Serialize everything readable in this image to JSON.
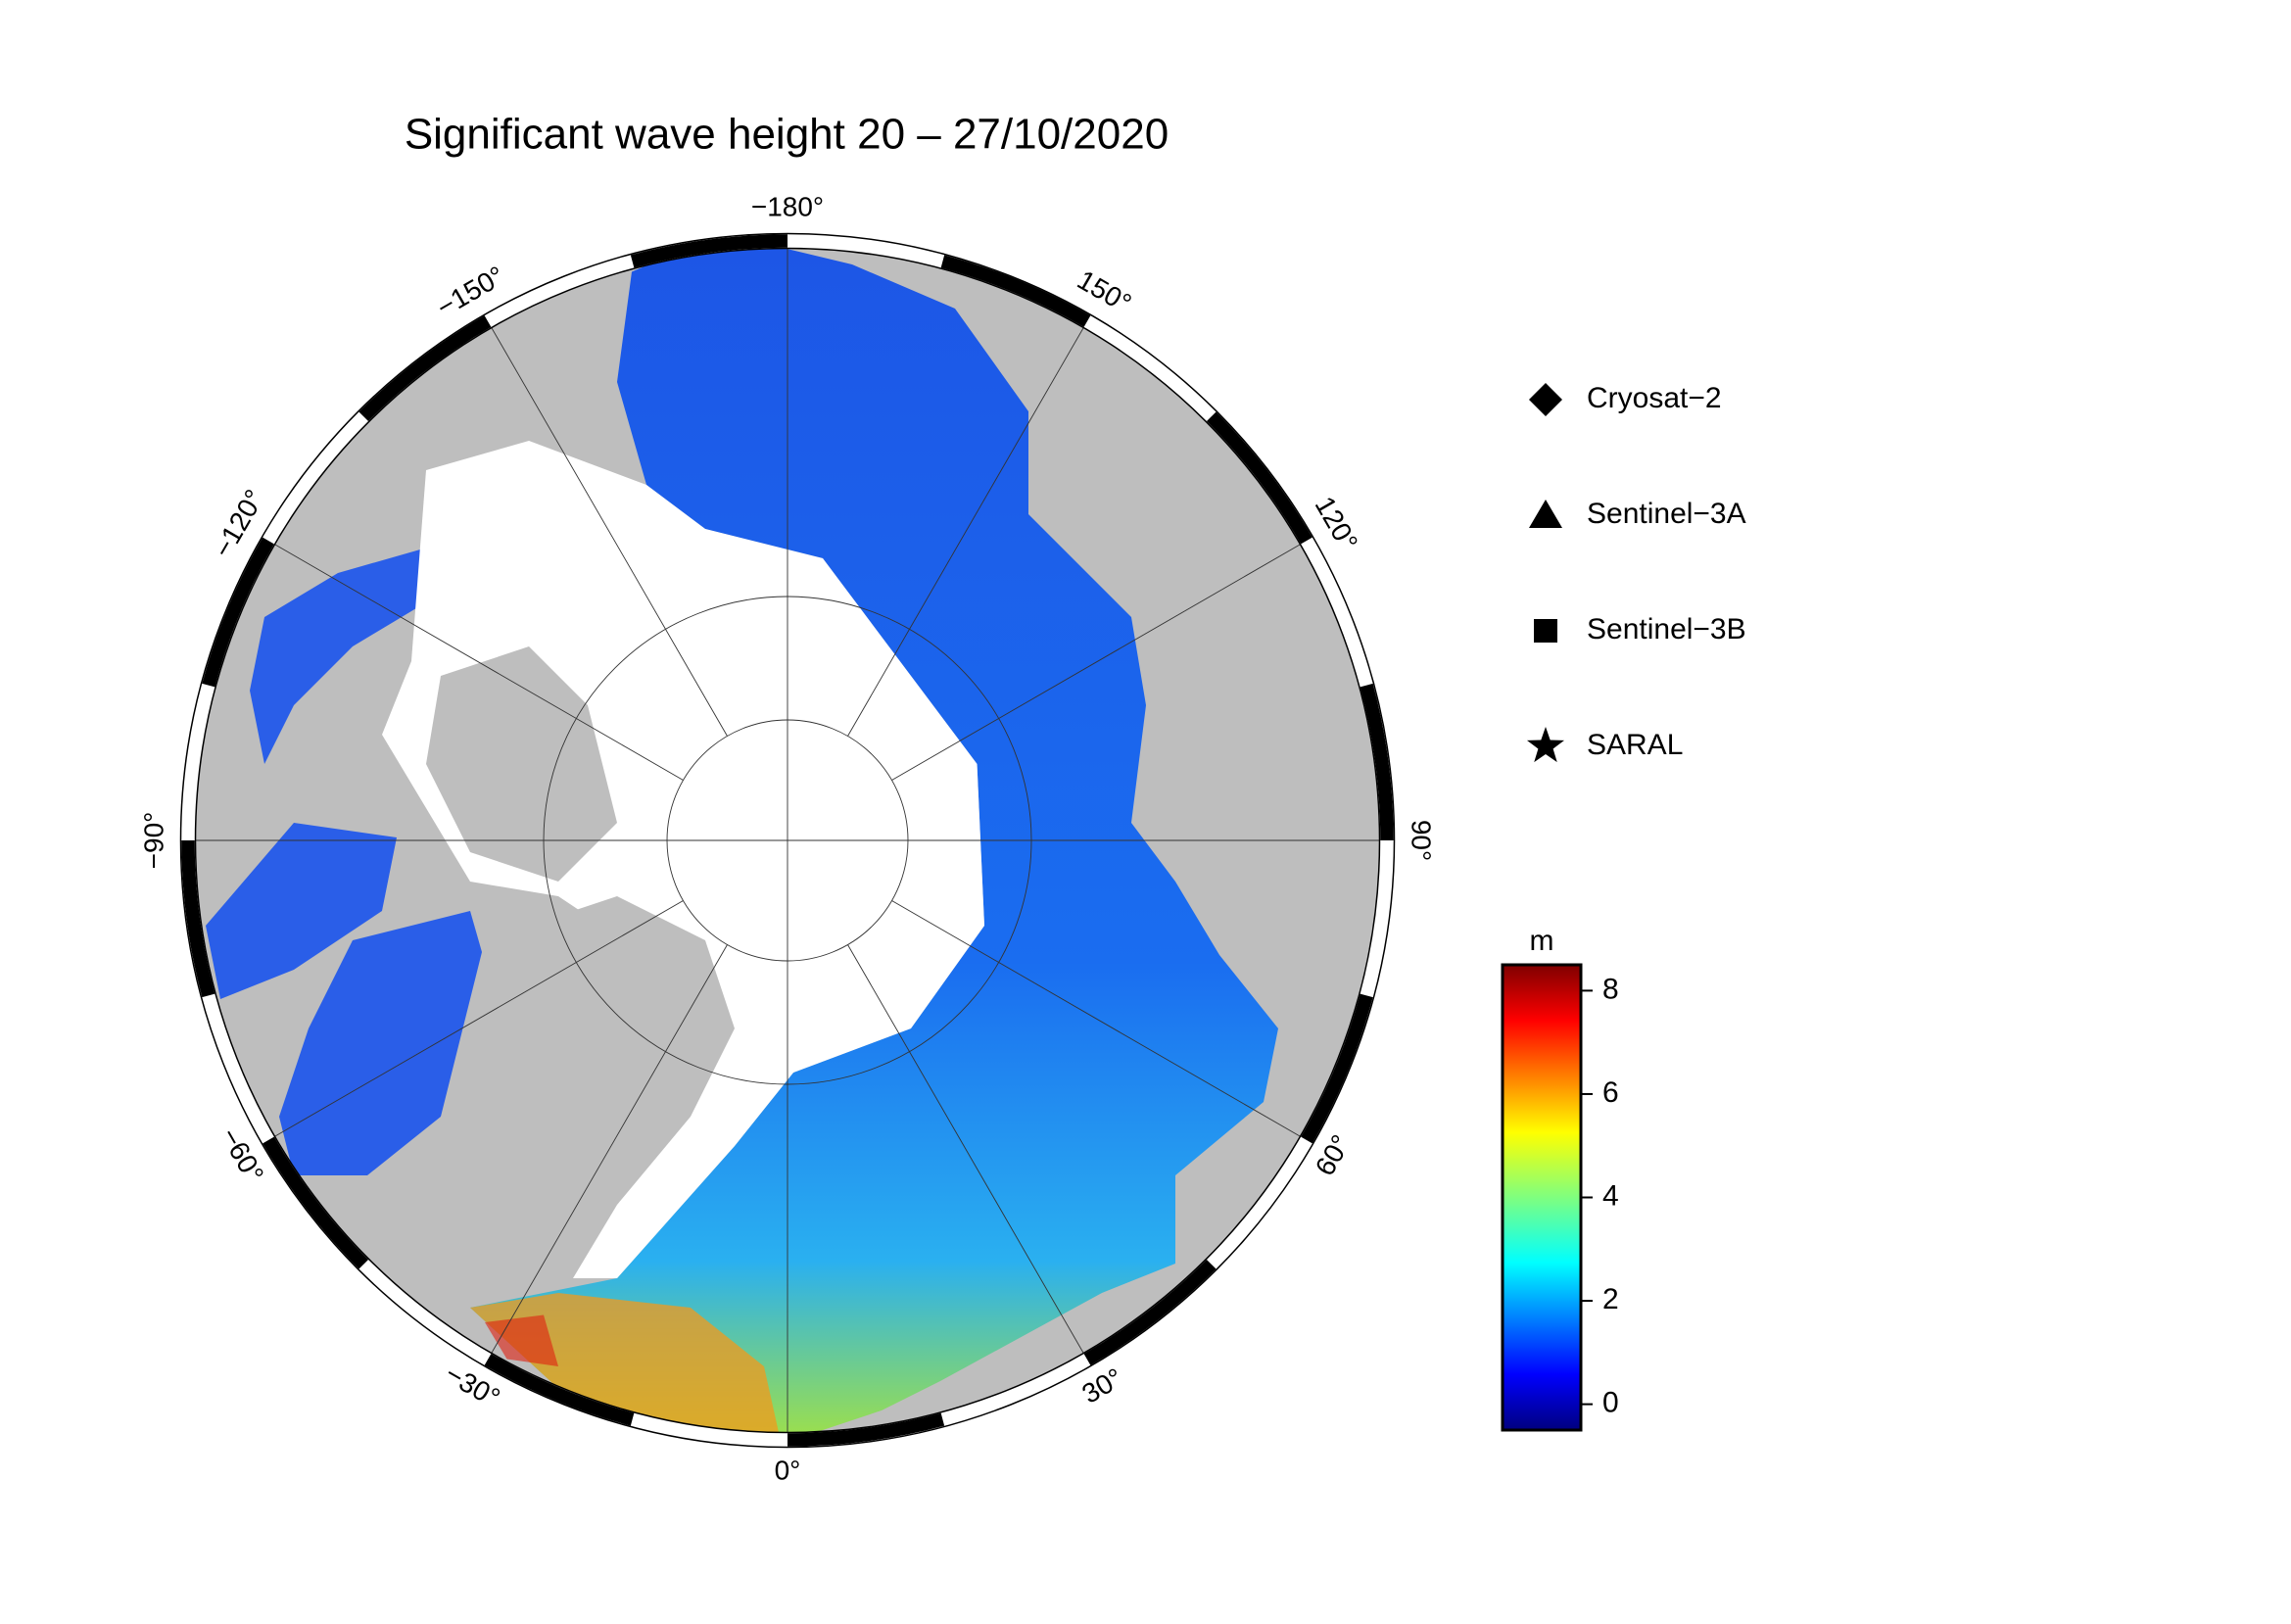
{
  "title": "Significant wave height 20 – 27/10/2020",
  "map": {
    "lon_labels": [
      {
        "value": -180,
        "label": "−180°"
      },
      {
        "value": 150,
        "label": "150°"
      },
      {
        "value": 120,
        "label": "120°"
      },
      {
        "value": 90,
        "label": "90°"
      },
      {
        "value": 60,
        "label": "60°"
      },
      {
        "value": 30,
        "label": "30°"
      },
      {
        "value": 0,
        "label": "0°"
      },
      {
        "value": -30,
        "label": "−30°"
      },
      {
        "value": -60,
        "label": "−60°"
      },
      {
        "value": -90,
        "label": "−90°"
      },
      {
        "value": -120,
        "label": "−120°"
      },
      {
        "value": -150,
        "label": "−150°"
      }
    ]
  },
  "legend": {
    "items": [
      {
        "label": "Cryosat−2",
        "marker": "diamond"
      },
      {
        "label": "Sentinel−3A",
        "marker": "triangle"
      },
      {
        "label": "Sentinel−3B",
        "marker": "square"
      },
      {
        "label": "SARAL",
        "marker": "star"
      }
    ]
  },
  "colorbar": {
    "unit": "m",
    "range": [
      -0.5,
      8.5
    ],
    "ticks": [
      0,
      2,
      4,
      6,
      8
    ]
  }
}
